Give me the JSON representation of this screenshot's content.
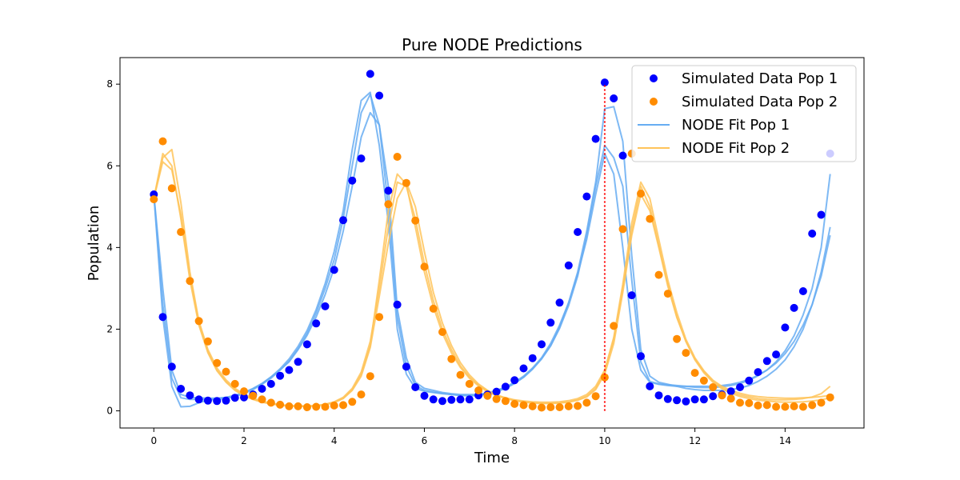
{
  "chart_data": {
    "type": "line",
    "title": "Pure NODE Predictions",
    "xlabel": "Time",
    "ylabel": "Population",
    "xlim": [
      -0.75,
      15.75
    ],
    "ylim": [
      -0.42,
      8.65
    ],
    "xticks": [
      0,
      2,
      4,
      6,
      8,
      10,
      12,
      14
    ],
    "yticks": [
      0,
      2,
      4,
      6,
      8
    ],
    "grid": false,
    "legend_position": "top-right",
    "vline": {
      "x": 10,
      "y_from": 0,
      "y_to": 8.0,
      "color": "#ff0000",
      "style": "dotted"
    },
    "series": [
      {
        "name": "Simulated Data Pop 1",
        "kind": "scatter",
        "color": "#0000ff",
        "x": [
          0.0,
          0.2,
          0.4,
          0.6,
          0.8,
          1.0,
          1.2,
          1.4,
          1.6,
          1.8,
          2.0,
          2.2,
          2.4,
          2.6,
          2.8,
          3.0,
          3.2,
          3.4,
          3.6,
          3.8,
          4.0,
          4.2,
          4.4,
          4.6,
          4.8,
          5.0,
          5.2,
          5.4,
          5.6,
          5.8,
          6.0,
          6.2,
          6.4,
          6.6,
          6.8,
          7.0,
          7.2,
          7.4,
          7.6,
          7.8,
          8.0,
          8.2,
          8.4,
          8.6,
          8.8,
          9.0,
          9.2,
          9.4,
          9.6,
          9.8,
          10.0,
          10.2,
          10.4,
          10.6,
          10.8,
          11.0,
          11.2,
          11.4,
          11.6,
          11.8,
          12.0,
          12.2,
          12.4,
          12.6,
          12.8,
          13.0,
          13.2,
          13.4,
          13.6,
          13.8,
          14.0,
          14.2,
          14.4,
          14.6,
          14.8,
          15.0
        ],
        "y": [
          5.3,
          2.3,
          1.08,
          0.54,
          0.38,
          0.28,
          0.25,
          0.24,
          0.25,
          0.32,
          0.33,
          0.4,
          0.54,
          0.66,
          0.86,
          1.0,
          1.2,
          1.63,
          2.14,
          2.56,
          3.45,
          4.67,
          5.64,
          6.18,
          8.25,
          7.72,
          5.39,
          2.6,
          1.08,
          0.58,
          0.37,
          0.28,
          0.24,
          0.27,
          0.28,
          0.28,
          0.38,
          0.4,
          0.47,
          0.59,
          0.75,
          1.04,
          1.29,
          1.63,
          2.16,
          2.65,
          3.56,
          4.38,
          5.25,
          6.66,
          8.04,
          7.65,
          6.25,
          2.83,
          1.34,
          0.6,
          0.38,
          0.29,
          0.26,
          0.23,
          0.28,
          0.28,
          0.36,
          0.4,
          0.48,
          0.58,
          0.74,
          0.95,
          1.22,
          1.38,
          2.04,
          2.52,
          2.93,
          4.34,
          4.8,
          6.3
        ]
      },
      {
        "name": "Simulated Data Pop 2",
        "kind": "scatter",
        "color": "#ff8c00",
        "x": [
          0.0,
          0.2,
          0.4,
          0.6,
          0.8,
          1.0,
          1.2,
          1.4,
          1.6,
          1.8,
          2.0,
          2.2,
          2.4,
          2.6,
          2.8,
          3.0,
          3.2,
          3.4,
          3.6,
          3.8,
          4.0,
          4.2,
          4.4,
          4.6,
          4.8,
          5.0,
          5.2,
          5.4,
          5.6,
          5.8,
          6.0,
          6.2,
          6.4,
          6.6,
          6.8,
          7.0,
          7.2,
          7.4,
          7.6,
          7.8,
          8.0,
          8.2,
          8.4,
          8.6,
          8.8,
          9.0,
          9.2,
          9.4,
          9.6,
          9.8,
          10.0,
          10.2,
          10.4,
          10.6,
          10.8,
          11.0,
          11.2,
          11.4,
          11.6,
          11.8,
          12.0,
          12.2,
          12.4,
          12.6,
          12.8,
          13.0,
          13.2,
          13.4,
          13.6,
          13.8,
          14.0,
          14.2,
          14.4,
          14.6,
          14.8,
          15.0
        ],
        "y": [
          5.18,
          6.6,
          5.45,
          4.38,
          3.18,
          2.2,
          1.7,
          1.17,
          0.96,
          0.66,
          0.48,
          0.37,
          0.28,
          0.2,
          0.15,
          0.11,
          0.11,
          0.09,
          0.1,
          0.1,
          0.13,
          0.14,
          0.22,
          0.4,
          0.85,
          2.3,
          5.06,
          6.22,
          5.58,
          4.66,
          3.53,
          2.5,
          1.93,
          1.27,
          0.88,
          0.66,
          0.5,
          0.37,
          0.29,
          0.24,
          0.17,
          0.14,
          0.11,
          0.08,
          0.09,
          0.09,
          0.11,
          0.12,
          0.2,
          0.36,
          0.82,
          2.08,
          4.45,
          6.3,
          5.32,
          4.7,
          3.33,
          2.87,
          1.76,
          1.42,
          0.93,
          0.74,
          0.58,
          0.38,
          0.3,
          0.2,
          0.19,
          0.13,
          0.14,
          0.1,
          0.1,
          0.11,
          0.1,
          0.14,
          0.2,
          0.33
        ]
      },
      {
        "name": "NODE Fit Pop 1",
        "kind": "lines",
        "color": "#67adf2",
        "x": [
          0.0,
          0.2,
          0.4,
          0.6,
          0.8,
          1.0,
          1.2,
          1.4,
          1.6,
          1.8,
          2.0,
          2.2,
          2.4,
          2.6,
          2.8,
          3.0,
          3.2,
          3.4,
          3.6,
          3.8,
          4.0,
          4.2,
          4.4,
          4.6,
          4.8,
          5.0,
          5.2,
          5.4,
          5.6,
          5.8,
          6.0,
          6.2,
          6.4,
          6.6,
          6.8,
          7.0,
          7.2,
          7.4,
          7.6,
          7.8,
          8.0,
          8.2,
          8.4,
          8.6,
          8.8,
          9.0,
          9.2,
          9.4,
          9.6,
          9.8,
          10.0,
          10.2,
          10.4,
          10.6,
          10.8,
          11.0,
          11.2,
          11.4,
          11.6,
          11.8,
          12.0,
          12.2,
          12.4,
          12.6,
          12.8,
          13.0,
          13.2,
          13.4,
          13.6,
          13.8,
          14.0,
          14.2,
          14.4,
          14.6,
          14.8,
          15.0
        ],
        "lines": [
          [
            5.3,
            3.0,
            1.0,
            0.4,
            0.33,
            0.32,
            0.31,
            0.31,
            0.33,
            0.38,
            0.45,
            0.55,
            0.67,
            0.83,
            1.0,
            1.2,
            1.5,
            1.85,
            2.3,
            2.85,
            3.5,
            4.4,
            5.5,
            6.7,
            7.3,
            7.0,
            5.5,
            2.5,
            1.3,
            0.7,
            0.55,
            0.5,
            0.45,
            0.42,
            0.4,
            0.4,
            0.4,
            0.44,
            0.5,
            0.58,
            0.7,
            0.85,
            1.05,
            1.3,
            1.65,
            2.1,
            2.65,
            3.35,
            4.2,
            5.3,
            6.3,
            5.8,
            4.0,
            2.0,
            1.0,
            0.7,
            0.65,
            0.62,
            0.6,
            0.6,
            0.6,
            0.6,
            0.6,
            0.62,
            0.65,
            0.7,
            0.77,
            0.87,
            1.0,
            1.17,
            1.4,
            1.7,
            2.1,
            2.6,
            3.3,
            4.3
          ],
          [
            5.3,
            2.6,
            0.8,
            0.32,
            0.28,
            0.28,
            0.27,
            0.28,
            0.3,
            0.35,
            0.42,
            0.52,
            0.65,
            0.8,
            1.0,
            1.22,
            1.52,
            1.9,
            2.4,
            3.0,
            3.7,
            4.7,
            6.0,
            7.3,
            7.75,
            7.0,
            5.0,
            2.3,
            1.1,
            0.62,
            0.5,
            0.46,
            0.43,
            0.4,
            0.38,
            0.37,
            0.38,
            0.42,
            0.48,
            0.56,
            0.68,
            0.83,
            1.03,
            1.28,
            1.6,
            2.05,
            2.65,
            3.4,
            4.4,
            5.6,
            7.4,
            7.45,
            6.6,
            3.8,
            1.5,
            0.85,
            0.7,
            0.65,
            0.6,
            0.55,
            0.52,
            0.5,
            0.5,
            0.5,
            0.52,
            0.56,
            0.62,
            0.72,
            0.85,
            1.02,
            1.25,
            1.57,
            2.0,
            2.6,
            3.4,
            4.5
          ],
          [
            5.3,
            2.3,
            0.6,
            0.1,
            0.11,
            0.2,
            0.26,
            0.3,
            0.33,
            0.37,
            0.44,
            0.54,
            0.67,
            0.83,
            1.03,
            1.27,
            1.58,
            1.97,
            2.48,
            3.12,
            3.9,
            4.9,
            6.4,
            7.6,
            7.8,
            6.5,
            4.6,
            2.0,
            0.9,
            0.55,
            0.48,
            0.45,
            0.42,
            0.4,
            0.38,
            0.37,
            0.38,
            0.41,
            0.47,
            0.55,
            0.67,
            0.82,
            1.02,
            1.27,
            1.59,
            2.02,
            2.58,
            3.3,
            4.3,
            5.5,
            6.5,
            6.2,
            5.5,
            3.2,
            1.2,
            0.72,
            0.66,
            0.64,
            0.62,
            0.6,
            0.58,
            0.57,
            0.57,
            0.59,
            0.62,
            0.67,
            0.75,
            0.86,
            1.0,
            1.2,
            1.47,
            1.84,
            2.35,
            3.0,
            4.0,
            5.8
          ]
        ]
      },
      {
        "name": "NODE Fit Pop 2",
        "kind": "lines",
        "color": "#ffc45a",
        "x": [
          0.0,
          0.2,
          0.4,
          0.6,
          0.8,
          1.0,
          1.2,
          1.4,
          1.6,
          1.8,
          2.0,
          2.2,
          2.4,
          2.6,
          2.8,
          3.0,
          3.2,
          3.4,
          3.6,
          3.8,
          4.0,
          4.2,
          4.4,
          4.6,
          4.8,
          5.0,
          5.2,
          5.4,
          5.6,
          5.8,
          6.0,
          6.2,
          6.4,
          6.6,
          6.8,
          7.0,
          7.2,
          7.4,
          7.6,
          7.8,
          8.0,
          8.2,
          8.4,
          8.6,
          8.8,
          9.0,
          9.2,
          9.4,
          9.6,
          9.8,
          10.0,
          10.2,
          10.4,
          10.6,
          10.8,
          11.0,
          11.2,
          11.4,
          11.6,
          11.8,
          12.0,
          12.2,
          12.4,
          12.6,
          12.8,
          13.0,
          13.2,
          13.4,
          13.6,
          13.8,
          14.0,
          14.2,
          14.4,
          14.6,
          14.8,
          15.0
        ],
        "lines": [
          [
            5.2,
            6.2,
            6.4,
            5.1,
            3.4,
            2.2,
            1.5,
            1.05,
            0.76,
            0.55,
            0.41,
            0.31,
            0.24,
            0.19,
            0.15,
            0.13,
            0.12,
            0.12,
            0.13,
            0.16,
            0.22,
            0.33,
            0.55,
            0.95,
            1.7,
            3.0,
            4.5,
            5.6,
            5.5,
            4.7,
            3.6,
            2.7,
            2.0,
            1.5,
            1.1,
            0.83,
            0.63,
            0.49,
            0.39,
            0.32,
            0.27,
            0.24,
            0.22,
            0.21,
            0.21,
            0.22,
            0.25,
            0.3,
            0.4,
            0.6,
            1.0,
            1.8,
            3.1,
            4.6,
            5.6,
            5.2,
            4.2,
            3.2,
            2.4,
            1.75,
            1.3,
            0.98,
            0.75,
            0.6,
            0.5,
            0.43,
            0.38,
            0.35,
            0.33,
            0.32,
            0.31,
            0.31,
            0.32,
            0.33,
            0.35,
            0.38
          ],
          [
            5.2,
            6.3,
            6.0,
            4.7,
            3.2,
            2.1,
            1.42,
            0.98,
            0.7,
            0.5,
            0.37,
            0.28,
            0.21,
            0.17,
            0.14,
            0.12,
            0.11,
            0.11,
            0.12,
            0.15,
            0.2,
            0.3,
            0.5,
            0.85,
            1.55,
            2.8,
            4.1,
            5.2,
            5.6,
            5.0,
            3.9,
            2.9,
            2.15,
            1.6,
            1.18,
            0.88,
            0.66,
            0.5,
            0.39,
            0.31,
            0.26,
            0.22,
            0.2,
            0.19,
            0.19,
            0.2,
            0.22,
            0.27,
            0.36,
            0.55,
            0.95,
            1.75,
            3.0,
            4.4,
            5.5,
            5.0,
            4.05,
            3.1,
            2.3,
            1.7,
            1.25,
            0.93,
            0.7,
            0.54,
            0.43,
            0.35,
            0.3,
            0.26,
            0.24,
            0.22,
            0.21,
            0.21,
            0.22,
            0.24,
            0.27,
            0.32
          ],
          [
            5.2,
            6.1,
            5.9,
            4.8,
            3.3,
            2.15,
            1.45,
            1.0,
            0.72,
            0.52,
            0.38,
            0.29,
            0.22,
            0.17,
            0.14,
            0.12,
            0.11,
            0.11,
            0.12,
            0.15,
            0.21,
            0.31,
            0.52,
            0.9,
            1.6,
            3.2,
            4.9,
            5.8,
            5.55,
            4.5,
            3.4,
            2.55,
            1.9,
            1.42,
            1.06,
            0.8,
            0.61,
            0.47,
            0.37,
            0.3,
            0.25,
            0.21,
            0.19,
            0.18,
            0.18,
            0.19,
            0.21,
            0.26,
            0.34,
            0.52,
            0.9,
            1.65,
            2.9,
            4.3,
            5.3,
            4.9,
            4.0,
            3.05,
            2.28,
            1.7,
            1.27,
            0.96,
            0.73,
            0.57,
            0.46,
            0.39,
            0.34,
            0.3,
            0.28,
            0.27,
            0.27,
            0.28,
            0.3,
            0.34,
            0.42,
            0.6
          ]
        ]
      }
    ]
  }
}
